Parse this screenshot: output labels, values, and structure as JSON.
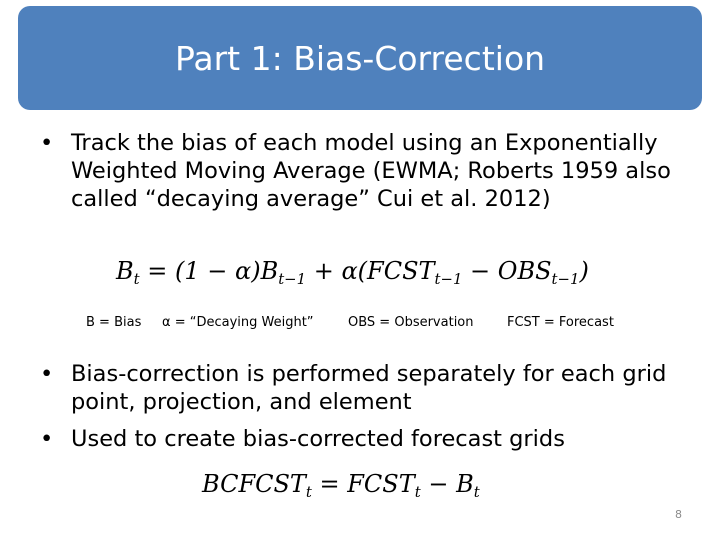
{
  "title": "Part 1: Bias-Correction",
  "bullets": [
    {
      "marker": "•",
      "text": "Track the bias of each model using an Exponentially Weighted Moving Average (EWMA; Roberts 1959 also called “decaying average” Cui et al. 2012)"
    },
    {
      "marker": "•",
      "text": "Bias-correction is performed separately for each grid point, projection, and element"
    },
    {
      "marker": "•",
      "text": "Used to create bias-corrected forecast grids"
    }
  ],
  "equation1": {
    "lhs": "B",
    "lhs_sub": "t",
    "p1": " = (1 − α)B",
    "p1_sub": "t−1",
    "p2": " + α(FCST",
    "p2_sub": "t−1",
    "p3": " − OBS",
    "p3_sub": "t−1",
    "p4": ")"
  },
  "legend": [
    "B = Bias",
    "α = “Decaying Weight”",
    "OBS = Observation",
    "FCST = Forecast"
  ],
  "equation2": {
    "lhs": "BCFCST",
    "lhs_sub": "t",
    "p1": " = FCST",
    "p1_sub": "t",
    "p2": " − B",
    "p2_sub": "t"
  },
  "slide_number": "8",
  "colors": {
    "title_bar": "#4f81bd",
    "title_text": "#ffffff",
    "slide_number": "#8c8c8c"
  }
}
